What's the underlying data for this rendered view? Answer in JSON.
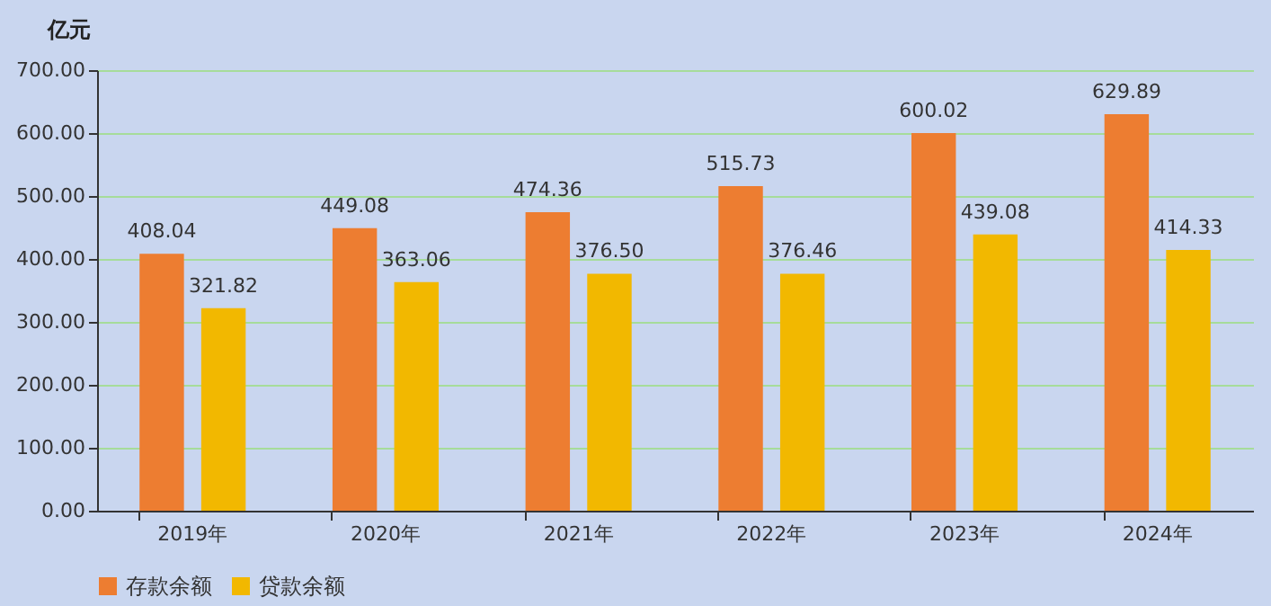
{
  "chart_data": {
    "type": "bar",
    "ylabel": "亿元",
    "categories": [
      "2019年",
      "2020年",
      "2021年",
      "2022年",
      "2023年",
      "2024年"
    ],
    "series": [
      {
        "name": "存款余额",
        "color": "#ed7d31",
        "values": [
          408.04,
          449.08,
          474.36,
          515.73,
          600.02,
          629.89
        ],
        "value_labels": [
          "408.04",
          "449.08",
          "474.36",
          "515.73",
          "600.02",
          "629.89"
        ]
      },
      {
        "name": "贷款余额",
        "color": "#f2b800",
        "values": [
          321.82,
          363.06,
          376.5,
          376.46,
          439.08,
          414.33
        ],
        "value_labels": [
          "321.82",
          "363.06",
          "376.50",
          "376.46",
          "439.08",
          "414.33"
        ]
      }
    ],
    "ylim": [
      0,
      700
    ],
    "yticks": [
      {
        "value": 0,
        "label": "0.00"
      },
      {
        "value": 100,
        "label": "100.00"
      },
      {
        "value": 200,
        "label": "200.00"
      },
      {
        "value": 300,
        "label": "300.00"
      },
      {
        "value": 400,
        "label": "400.00"
      },
      {
        "value": 500,
        "label": "500.00"
      },
      {
        "value": 600,
        "label": "600.00"
      },
      {
        "value": 700,
        "label": "700.00"
      }
    ],
    "grid": "y",
    "legend": "bottom"
  }
}
